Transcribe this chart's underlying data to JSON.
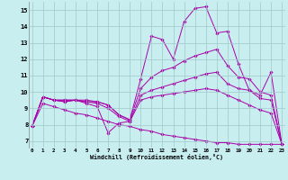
{
  "xlabel": "Windchill (Refroidissement éolien,°C)",
  "background_color": "#c8eef0",
  "line_color": "#aa00aa",
  "grid_color": "#a0c8c8",
  "x_ticks": [
    0,
    1,
    2,
    3,
    4,
    5,
    6,
    7,
    8,
    9,
    10,
    11,
    12,
    13,
    14,
    15,
    16,
    17,
    18,
    19,
    20,
    21,
    22,
    23
  ],
  "y_ticks": [
    7,
    8,
    9,
    10,
    11,
    12,
    13,
    14,
    15
  ],
  "xlim": [
    -0.3,
    23.3
  ],
  "ylim": [
    6.6,
    15.5
  ],
  "series": [
    [
      7.9,
      9.7,
      9.5,
      9.5,
      9.5,
      9.4,
      9.4,
      9.2,
      8.6,
      8.3,
      10.8,
      13.4,
      13.2,
      12.0,
      14.3,
      15.1,
      15.2,
      13.6,
      13.7,
      11.7,
      10.1,
      9.8,
      11.2,
      6.8
    ],
    [
      7.9,
      9.7,
      9.5,
      9.5,
      9.5,
      9.5,
      9.4,
      9.2,
      8.6,
      8.3,
      10.2,
      10.9,
      11.3,
      11.5,
      11.9,
      12.2,
      12.4,
      12.6,
      11.6,
      10.9,
      10.8,
      10.0,
      9.8,
      6.8
    ],
    [
      7.9,
      9.7,
      9.5,
      9.4,
      9.5,
      9.4,
      9.3,
      9.0,
      8.5,
      8.2,
      9.8,
      10.1,
      10.3,
      10.5,
      10.7,
      10.9,
      11.1,
      11.2,
      10.5,
      10.2,
      10.1,
      9.6,
      9.5,
      6.8
    ],
    [
      7.9,
      9.7,
      9.5,
      9.4,
      9.5,
      9.3,
      9.1,
      7.5,
      8.1,
      8.2,
      9.5,
      9.7,
      9.8,
      9.9,
      10.0,
      10.1,
      10.2,
      10.1,
      9.8,
      9.5,
      9.2,
      8.9,
      8.7,
      6.8
    ],
    [
      7.9,
      9.3,
      9.1,
      8.9,
      8.7,
      8.6,
      8.4,
      8.2,
      8.0,
      7.9,
      7.7,
      7.6,
      7.4,
      7.3,
      7.2,
      7.1,
      7.0,
      6.9,
      6.9,
      6.8,
      6.8,
      6.8,
      6.8,
      6.8
    ]
  ]
}
